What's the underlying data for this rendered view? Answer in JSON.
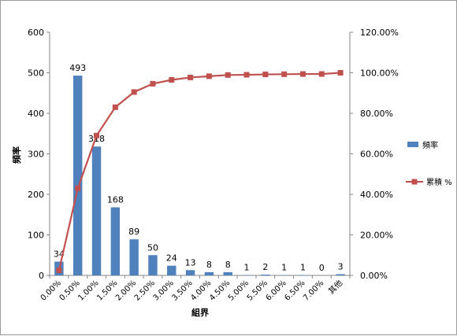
{
  "chart_data": {
    "type": "bar+line",
    "categories": [
      "0.00%",
      "0.50%",
      "1.00%",
      "1.50%",
      "2.00%",
      "2.50%",
      "3.00%",
      "3.50%",
      "4.00%",
      "4.50%",
      "5.00%",
      "5.50%",
      "6.00%",
      "6.50%",
      "7.00%",
      "其他"
    ],
    "series": [
      {
        "name": "頻率",
        "type": "bar",
        "axis": "left",
        "color": "#4f81bd",
        "values": [
          34,
          493,
          318,
          168,
          89,
          50,
          24,
          13,
          8,
          8,
          1,
          2,
          1,
          1,
          0,
          3
        ]
      },
      {
        "name": "累積 %",
        "type": "line",
        "axis": "right",
        "color": "#c0504d",
        "values": [
          2.5,
          43.0,
          69.0,
          83.0,
          90.5,
          94.6,
          96.5,
          97.7,
          98.3,
          98.9,
          99.0,
          99.2,
          99.3,
          99.4,
          99.4,
          100.0
        ]
      }
    ],
    "xlabel": "組界",
    "ylabel": "頻率",
    "ylim": [
      0,
      600
    ],
    "yticks": [
      "0",
      "100",
      "200",
      "300",
      "400",
      "500",
      "600"
    ],
    "y2lim": [
      0,
      120
    ],
    "y2ticks": [
      "0.00%",
      "20.00%",
      "40.00%",
      "60.00%",
      "80.00%",
      "100.00%",
      "120.00%"
    ],
    "legend_position": "right",
    "grid": false,
    "data_labels": true
  }
}
